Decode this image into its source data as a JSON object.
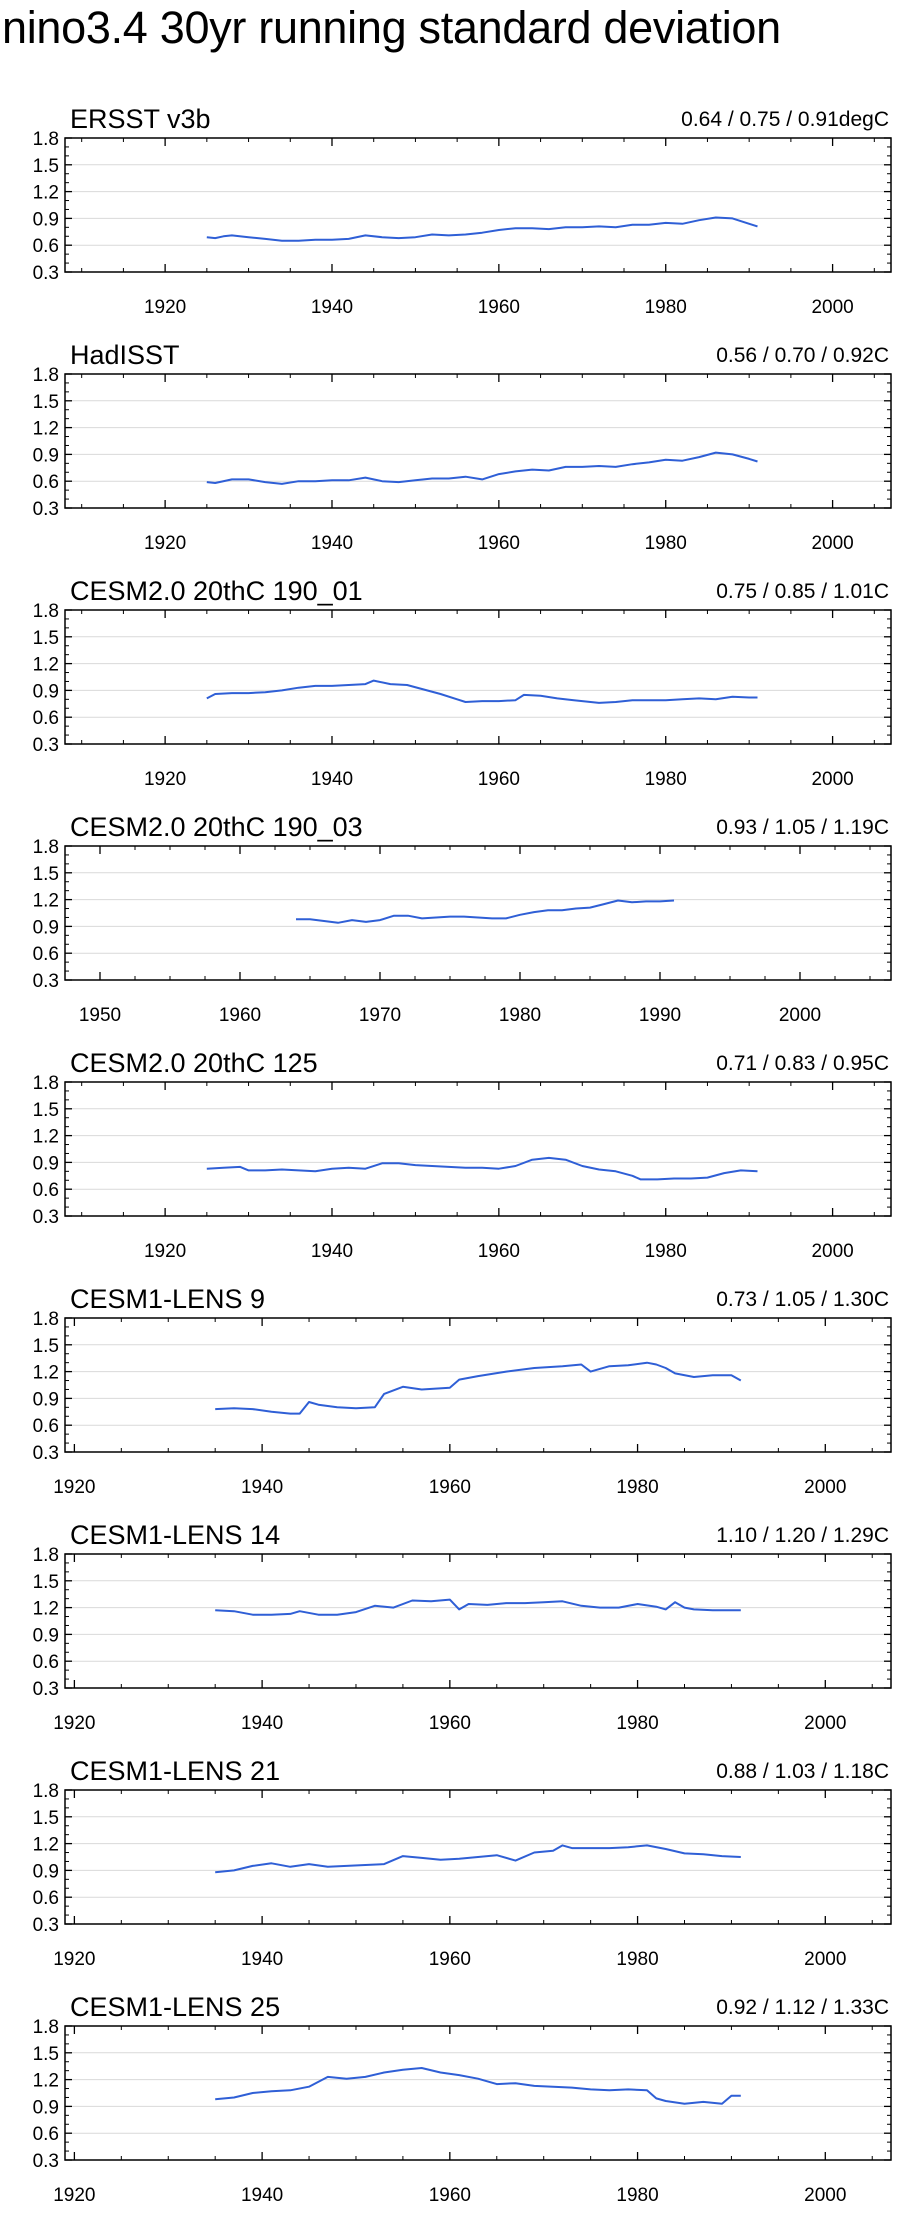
{
  "page_title": "nino3.4 30yr running standard deviation",
  "colors": {
    "line": "#2f5fd6",
    "grid": "#d9d9d9",
    "frame": "#000000"
  },
  "chart_data": [
    {
      "type": "line",
      "title": "ERSST v3b",
      "stats": "0.64 / 0.75 / 0.91degC",
      "xlim": [
        1908,
        2007
      ],
      "ylim": [
        0.3,
        1.8
      ],
      "xticks": [
        1920,
        1940,
        1960,
        1980,
        2000
      ],
      "yticks": [
        "0.3",
        "0.6",
        "0.9",
        "1.2",
        "1.5",
        "1.8"
      ],
      "grid": "horizontal",
      "x": [
        1925,
        1926,
        1927,
        1928,
        1930,
        1932,
        1934,
        1936,
        1938,
        1940,
        1942,
        1944,
        1946,
        1948,
        1950,
        1952,
        1954,
        1956,
        1958,
        1960,
        1962,
        1964,
        1966,
        1968,
        1970,
        1972,
        1974,
        1976,
        1978,
        1980,
        1982,
        1984,
        1986,
        1988,
        1990,
        1991
      ],
      "y": [
        0.69,
        0.68,
        0.7,
        0.71,
        0.69,
        0.67,
        0.65,
        0.65,
        0.66,
        0.66,
        0.67,
        0.71,
        0.69,
        0.68,
        0.69,
        0.72,
        0.71,
        0.72,
        0.74,
        0.77,
        0.79,
        0.79,
        0.78,
        0.8,
        0.8,
        0.81,
        0.8,
        0.83,
        0.83,
        0.85,
        0.84,
        0.88,
        0.91,
        0.9,
        0.84,
        0.81
      ]
    },
    {
      "type": "line",
      "title": "HadISST",
      "stats": "0.56 / 0.70 / 0.92C",
      "xlim": [
        1908,
        2007
      ],
      "ylim": [
        0.3,
        1.8
      ],
      "xticks": [
        1920,
        1940,
        1960,
        1980,
        2000
      ],
      "yticks": [
        "0.3",
        "0.6",
        "0.9",
        "1.2",
        "1.5",
        "1.8"
      ],
      "grid": "horizontal",
      "x": [
        1925,
        1926,
        1928,
        1930,
        1932,
        1934,
        1936,
        1938,
        1940,
        1942,
        1944,
        1946,
        1948,
        1950,
        1952,
        1954,
        1956,
        1958,
        1960,
        1962,
        1964,
        1966,
        1968,
        1970,
        1972,
        1974,
        1976,
        1978,
        1980,
        1982,
        1984,
        1986,
        1988,
        1990,
        1991
      ],
      "y": [
        0.59,
        0.58,
        0.62,
        0.62,
        0.59,
        0.57,
        0.6,
        0.6,
        0.61,
        0.61,
        0.64,
        0.6,
        0.59,
        0.61,
        0.63,
        0.63,
        0.65,
        0.62,
        0.68,
        0.71,
        0.73,
        0.72,
        0.76,
        0.76,
        0.77,
        0.76,
        0.79,
        0.81,
        0.84,
        0.83,
        0.87,
        0.92,
        0.9,
        0.85,
        0.82
      ]
    },
    {
      "type": "line",
      "title": "CESM2.0 20thC 190_01",
      "stats": "0.75 / 0.85 / 1.01C",
      "xlim": [
        1908,
        2007
      ],
      "ylim": [
        0.3,
        1.8
      ],
      "xticks": [
        1920,
        1940,
        1960,
        1980,
        2000
      ],
      "yticks": [
        "0.3",
        "0.6",
        "0.9",
        "1.2",
        "1.5",
        "1.8"
      ],
      "grid": "horizontal",
      "x": [
        1925,
        1926,
        1928,
        1930,
        1932,
        1934,
        1936,
        1938,
        1940,
        1942,
        1944,
        1945,
        1947,
        1949,
        1951,
        1953,
        1955,
        1956,
        1958,
        1960,
        1962,
        1963,
        1965,
        1967,
        1969,
        1971,
        1972,
        1974,
        1976,
        1978,
        1980,
        1982,
        1984,
        1986,
        1988,
        1990,
        1991
      ],
      "y": [
        0.81,
        0.86,
        0.87,
        0.87,
        0.88,
        0.9,
        0.93,
        0.95,
        0.95,
        0.96,
        0.97,
        1.01,
        0.97,
        0.96,
        0.91,
        0.86,
        0.8,
        0.77,
        0.78,
        0.78,
        0.79,
        0.85,
        0.84,
        0.81,
        0.79,
        0.77,
        0.76,
        0.77,
        0.79,
        0.79,
        0.79,
        0.8,
        0.81,
        0.8,
        0.83,
        0.82,
        0.82
      ]
    },
    {
      "type": "line",
      "title": "CESM2.0 20thC 190_03",
      "stats": "0.93 / 1.05 / 1.19C",
      "xlim": [
        1947.5,
        2006.5
      ],
      "ylim": [
        0.3,
        1.8
      ],
      "xticks": [
        1950,
        1960,
        1970,
        1980,
        1990,
        2000
      ],
      "yticks": [
        "0.3",
        "0.6",
        "0.9",
        "1.2",
        "1.5",
        "1.8"
      ],
      "grid": "horizontal",
      "x": [
        1964,
        1965,
        1966,
        1967,
        1968,
        1969,
        1970,
        1971,
        1972,
        1973,
        1974,
        1975,
        1976,
        1977,
        1978,
        1979,
        1980,
        1981,
        1982,
        1983,
        1984,
        1985,
        1986,
        1987,
        1988,
        1989,
        1990,
        1991
      ],
      "y": [
        0.98,
        0.98,
        0.96,
        0.94,
        0.97,
        0.95,
        0.97,
        1.02,
        1.02,
        0.99,
        1.0,
        1.01,
        1.01,
        1.0,
        0.99,
        0.99,
        1.03,
        1.06,
        1.08,
        1.08,
        1.1,
        1.11,
        1.15,
        1.19,
        1.17,
        1.18,
        1.18,
        1.19
      ]
    },
    {
      "type": "line",
      "title": "CESM2.0 20thC 125",
      "stats": "0.71 / 0.83 / 0.95C",
      "xlim": [
        1908,
        2007
      ],
      "ylim": [
        0.3,
        1.8
      ],
      "xticks": [
        1920,
        1940,
        1960,
        1980,
        2000
      ],
      "yticks": [
        "0.3",
        "0.6",
        "0.9",
        "1.2",
        "1.5",
        "1.8"
      ],
      "grid": "horizontal",
      "x": [
        1925,
        1927,
        1929,
        1930,
        1932,
        1934,
        1936,
        1938,
        1940,
        1942,
        1944,
        1946,
        1948,
        1950,
        1952,
        1954,
        1956,
        1958,
        1960,
        1962,
        1964,
        1966,
        1968,
        1970,
        1972,
        1974,
        1976,
        1977,
        1979,
        1981,
        1983,
        1985,
        1987,
        1989,
        1991
      ],
      "y": [
        0.83,
        0.84,
        0.85,
        0.81,
        0.81,
        0.82,
        0.81,
        0.8,
        0.83,
        0.84,
        0.83,
        0.89,
        0.89,
        0.87,
        0.86,
        0.85,
        0.84,
        0.84,
        0.83,
        0.86,
        0.93,
        0.95,
        0.93,
        0.86,
        0.82,
        0.8,
        0.75,
        0.71,
        0.71,
        0.72,
        0.72,
        0.73,
        0.78,
        0.81,
        0.8
      ]
    },
    {
      "type": "line",
      "title": "CESM1-LENS 9",
      "stats": "0.73 / 1.05 / 1.30C",
      "xlim": [
        1919,
        2007
      ],
      "ylim": [
        0.3,
        1.8
      ],
      "xticks": [
        1920,
        1940,
        1960,
        1980,
        2000
      ],
      "yticks": [
        "0.3",
        "0.6",
        "0.9",
        "1.2",
        "1.5",
        "1.8"
      ],
      "grid": "horizontal",
      "x": [
        1935,
        1937,
        1939,
        1941,
        1943,
        1944,
        1945,
        1946,
        1948,
        1950,
        1952,
        1953,
        1955,
        1957,
        1960,
        1961,
        1963,
        1966,
        1969,
        1972,
        1974,
        1975,
        1977,
        1979,
        1981,
        1982,
        1983,
        1984,
        1986,
        1988,
        1990,
        1991
      ],
      "y": [
        0.78,
        0.79,
        0.78,
        0.75,
        0.73,
        0.73,
        0.86,
        0.83,
        0.8,
        0.79,
        0.8,
        0.95,
        1.03,
        1.0,
        1.02,
        1.11,
        1.15,
        1.2,
        1.24,
        1.26,
        1.28,
        1.2,
        1.26,
        1.27,
        1.3,
        1.28,
        1.24,
        1.18,
        1.14,
        1.16,
        1.16,
        1.1
      ]
    },
    {
      "type": "line",
      "title": "CESM1-LENS 14",
      "stats": "1.10 / 1.20 / 1.29C",
      "xlim": [
        1919,
        2007
      ],
      "ylim": [
        0.3,
        1.8
      ],
      "xticks": [
        1920,
        1940,
        1960,
        1980,
        2000
      ],
      "yticks": [
        "0.3",
        "0.6",
        "0.9",
        "1.2",
        "1.5",
        "1.8"
      ],
      "grid": "horizontal",
      "x": [
        1935,
        1937,
        1939,
        1941,
        1943,
        1944,
        1946,
        1948,
        1950,
        1952,
        1954,
        1956,
        1958,
        1960,
        1961,
        1962,
        1964,
        1966,
        1968,
        1970,
        1972,
        1974,
        1976,
        1978,
        1980,
        1982,
        1983,
        1984,
        1985,
        1986,
        1988,
        1990,
        1991
      ],
      "y": [
        1.17,
        1.16,
        1.12,
        1.12,
        1.13,
        1.16,
        1.12,
        1.12,
        1.15,
        1.22,
        1.2,
        1.28,
        1.27,
        1.29,
        1.18,
        1.24,
        1.23,
        1.25,
        1.25,
        1.26,
        1.27,
        1.22,
        1.2,
        1.2,
        1.24,
        1.21,
        1.18,
        1.26,
        1.2,
        1.18,
        1.17,
        1.17,
        1.17
      ]
    },
    {
      "type": "line",
      "title": "CESM1-LENS 21",
      "stats": "0.88 / 1.03 / 1.18C",
      "xlim": [
        1919,
        2007
      ],
      "ylim": [
        0.3,
        1.8
      ],
      "xticks": [
        1920,
        1940,
        1960,
        1980,
        2000
      ],
      "yticks": [
        "0.3",
        "0.6",
        "0.9",
        "1.2",
        "1.5",
        "1.8"
      ],
      "grid": "horizontal",
      "x": [
        1935,
        1937,
        1939,
        1941,
        1943,
        1945,
        1947,
        1949,
        1951,
        1953,
        1955,
        1957,
        1959,
        1961,
        1963,
        1965,
        1967,
        1969,
        1971,
        1972,
        1973,
        1975,
        1977,
        1979,
        1981,
        1983,
        1985,
        1987,
        1989,
        1991
      ],
      "y": [
        0.88,
        0.9,
        0.95,
        0.98,
        0.94,
        0.97,
        0.94,
        0.95,
        0.96,
        0.97,
        1.06,
        1.04,
        1.02,
        1.03,
        1.05,
        1.07,
        1.01,
        1.1,
        1.12,
        1.18,
        1.15,
        1.15,
        1.15,
        1.16,
        1.18,
        1.14,
        1.09,
        1.08,
        1.06,
        1.05
      ]
    },
    {
      "type": "line",
      "title": "CESM1-LENS 25",
      "stats": "0.92 / 1.12 / 1.33C",
      "xlim": [
        1919,
        2007
      ],
      "ylim": [
        0.3,
        1.8
      ],
      "xticks": [
        1920,
        1940,
        1960,
        1980,
        2000
      ],
      "yticks": [
        "0.3",
        "0.6",
        "0.9",
        "1.2",
        "1.5",
        "1.8"
      ],
      "grid": "horizontal",
      "x": [
        1935,
        1937,
        1939,
        1941,
        1943,
        1945,
        1947,
        1949,
        1951,
        1953,
        1955,
        1957,
        1959,
        1961,
        1963,
        1965,
        1967,
        1969,
        1971,
        1973,
        1975,
        1977,
        1979,
        1981,
        1982,
        1983,
        1985,
        1987,
        1989,
        1990,
        1991
      ],
      "y": [
        0.98,
        1.0,
        1.05,
        1.07,
        1.08,
        1.12,
        1.23,
        1.21,
        1.23,
        1.28,
        1.31,
        1.33,
        1.28,
        1.25,
        1.21,
        1.15,
        1.16,
        1.13,
        1.12,
        1.11,
        1.09,
        1.08,
        1.09,
        1.08,
        0.99,
        0.96,
        0.93,
        0.95,
        0.93,
        1.02,
        1.02
      ]
    }
  ]
}
